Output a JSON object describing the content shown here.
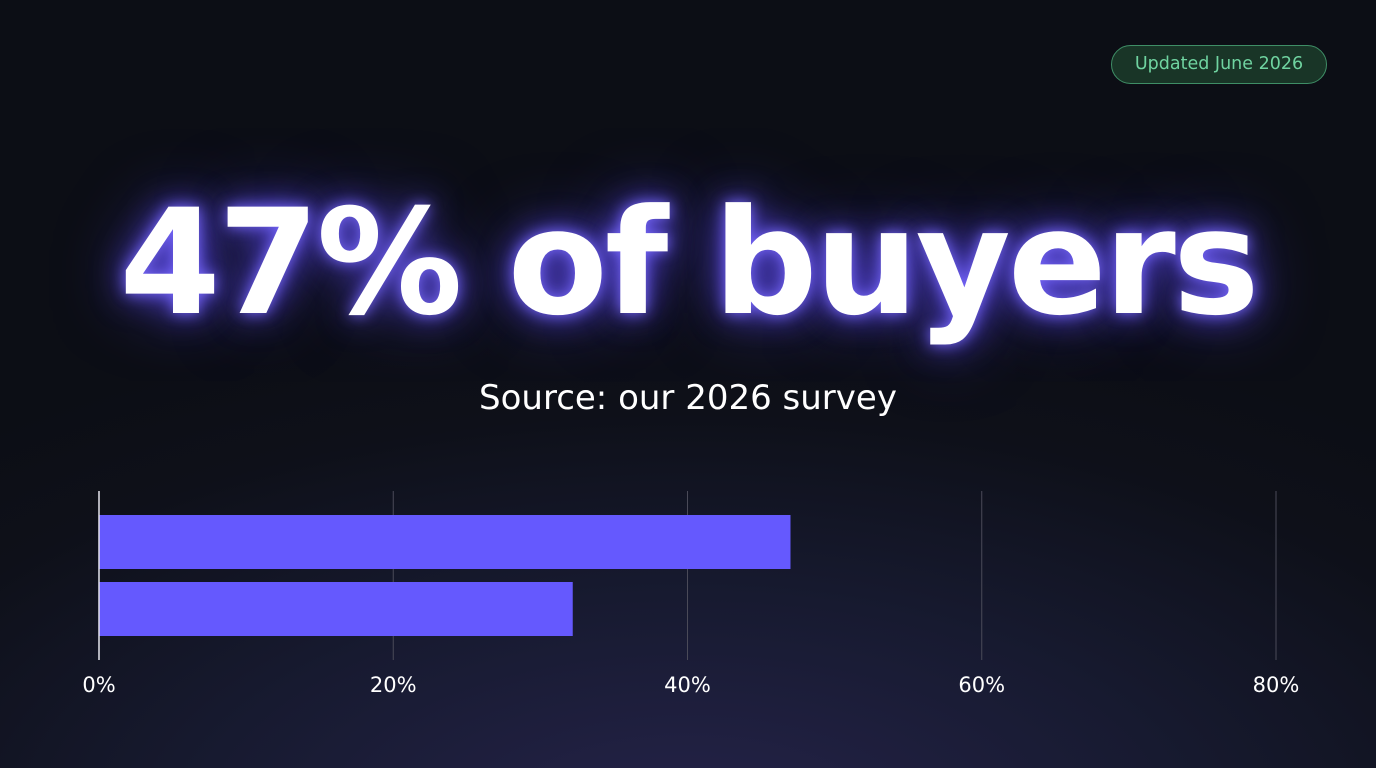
{
  "badge": {
    "text": "Updated June 2026"
  },
  "headline": {
    "text": "47% of buyers"
  },
  "subtitle": {
    "text": "Source: our 2026 survey"
  },
  "colors": {
    "bar": "#6559fe",
    "badge_border": "#3f8e66",
    "badge_text": "#6fd3a0",
    "grid": "#4a4a58",
    "axis": "#e6e6ee"
  },
  "chart_data": {
    "type": "bar",
    "orientation": "horizontal",
    "values": [
      47,
      32.2
    ],
    "xlim": [
      0,
      80
    ],
    "xticks": [
      0,
      20,
      40,
      60,
      80
    ],
    "xtick_labels": [
      "0%",
      "20%",
      "40%",
      "60%",
      "80%"
    ],
    "grid": true,
    "legend": "none"
  }
}
